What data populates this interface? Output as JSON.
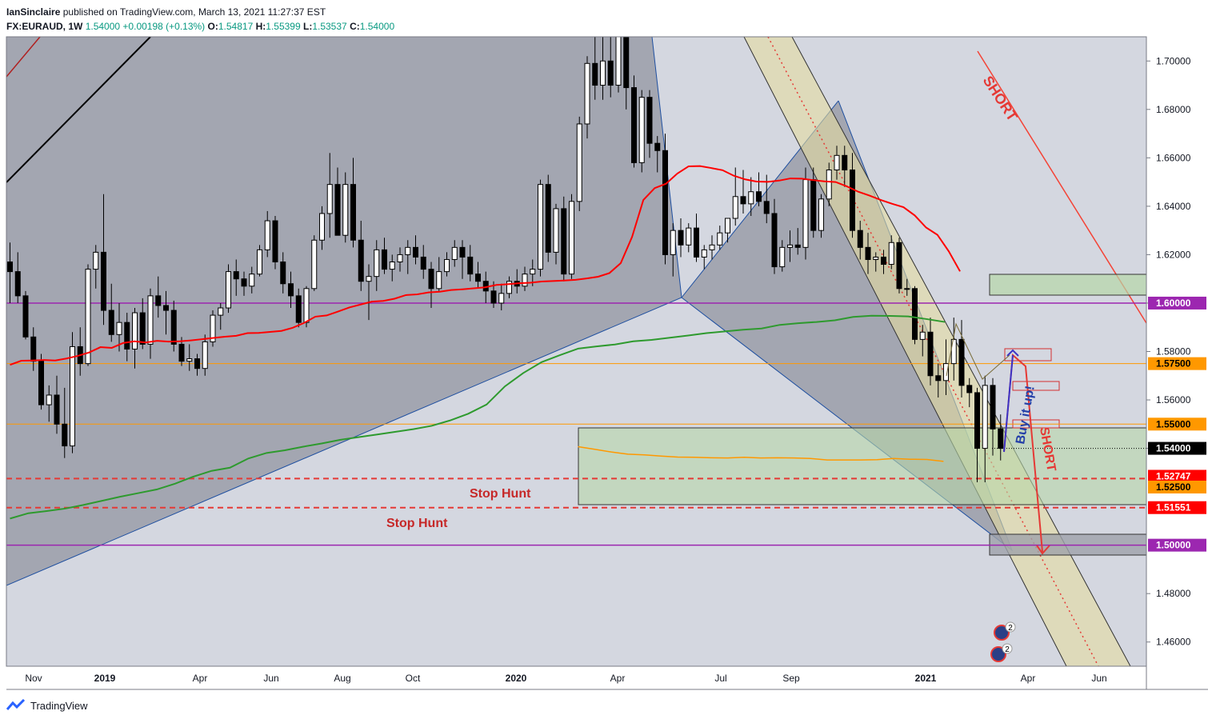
{
  "header": {
    "author": "IanSinclaire",
    "published": "published on TradingView.com, March 13, 2021 11:27:37 EST",
    "symbol": "FX:EURAUD, 1W",
    "last": "1.54000",
    "change": "+0.00198 (+0.13%)",
    "o_label": "O:",
    "o": "1.54817",
    "h_label": "H:",
    "h": "1.55399",
    "l_label": "L:",
    "l": "1.53537",
    "c_label": "C:",
    "c": "1.54000"
  },
  "footer": {
    "brand": "TradingView",
    "logo_icon": "tradingview-logo-icon"
  },
  "colors": {
    "background": "#d1d4dc",
    "plot_bg": "#d4d7e0",
    "bull": "#ffffff",
    "bear": "#000000",
    "ema_red": "#ff0000",
    "ema_green": "#2e9a2e",
    "ma_orange": "#ff9800",
    "purple": "#9c27b0",
    "channel": "#e4dca0",
    "zone_green": "#b7d7a8"
  },
  "chart_data": {
    "type": "candlestick",
    "symbol": "FX:EURAUD",
    "timeframe": "1W",
    "ylim": [
      1.45,
      1.71
    ],
    "y_ticks": [
      "1.70000",
      "1.68000",
      "1.66000",
      "1.64000",
      "1.62000",
      "1.60000",
      "1.58000",
      "1.56000",
      "1.54000",
      "1.48000",
      "1.46000"
    ],
    "x_ticks": [
      "Nov",
      "2019",
      "Apr",
      "Jun",
      "Aug",
      "Oct",
      "2020",
      "Apr",
      "Jul",
      "Sep",
      "2021",
      "Apr",
      "Jun"
    ],
    "price_labels": [
      {
        "value": "1.60000",
        "color": "#9c27b0"
      },
      {
        "value": "1.57500",
        "color": "#ff9800"
      },
      {
        "value": "1.55000",
        "color": "#ff9800"
      },
      {
        "value": "1.54000",
        "color": "#000000"
      },
      {
        "value": "1.52747",
        "color": "#ff0000"
      },
      {
        "value": "1.52500",
        "color": "#ff9800"
      },
      {
        "value": "1.51551",
        "color": "#ff0000"
      },
      {
        "value": "1.50000",
        "color": "#9c27b0"
      }
    ],
    "annotations": [
      "SHORT",
      "Stop Hunt",
      "Stop Hunt",
      "Buy it up!",
      "SHORT"
    ],
    "event_badges": [
      "2",
      "2"
    ],
    "candles": [
      {
        "o": 1.617,
        "h": 1.625,
        "l": 1.6,
        "c": 1.613
      },
      {
        "o": 1.613,
        "h": 1.621,
        "l": 1.6,
        "c": 1.603
      },
      {
        "o": 1.603,
        "h": 1.605,
        "l": 1.585,
        "c": 1.586
      },
      {
        "o": 1.586,
        "h": 1.59,
        "l": 1.572,
        "c": 1.576
      },
      {
        "o": 1.576,
        "h": 1.579,
        "l": 1.556,
        "c": 1.558
      },
      {
        "o": 1.558,
        "h": 1.566,
        "l": 1.551,
        "c": 1.562
      },
      {
        "o": 1.562,
        "h": 1.57,
        "l": 1.546,
        "c": 1.55
      },
      {
        "o": 1.55,
        "h": 1.565,
        "l": 1.536,
        "c": 1.541
      },
      {
        "o": 1.541,
        "h": 1.588,
        "l": 1.538,
        "c": 1.582
      },
      {
        "o": 1.582,
        "h": 1.59,
        "l": 1.57,
        "c": 1.575
      },
      {
        "o": 1.575,
        "h": 1.616,
        "l": 1.574,
        "c": 1.614
      },
      {
        "o": 1.614,
        "h": 1.624,
        "l": 1.606,
        "c": 1.621
      },
      {
        "o": 1.621,
        "h": 1.645,
        "l": 1.591,
        "c": 1.597
      },
      {
        "o": 1.597,
        "h": 1.608,
        "l": 1.584,
        "c": 1.587
      },
      {
        "o": 1.587,
        "h": 1.6,
        "l": 1.58,
        "c": 1.592
      },
      {
        "o": 1.592,
        "h": 1.596,
        "l": 1.576,
        "c": 1.581
      },
      {
        "o": 1.581,
        "h": 1.598,
        "l": 1.573,
        "c": 1.596
      },
      {
        "o": 1.596,
        "h": 1.602,
        "l": 1.581,
        "c": 1.583
      },
      {
        "o": 1.583,
        "h": 1.606,
        "l": 1.577,
        "c": 1.603
      },
      {
        "o": 1.603,
        "h": 1.611,
        "l": 1.594,
        "c": 1.599
      },
      {
        "o": 1.599,
        "h": 1.605,
        "l": 1.587,
        "c": 1.597
      },
      {
        "o": 1.597,
        "h": 1.601,
        "l": 1.58,
        "c": 1.583
      },
      {
        "o": 1.583,
        "h": 1.586,
        "l": 1.574,
        "c": 1.576
      },
      {
        "o": 1.576,
        "h": 1.583,
        "l": 1.572,
        "c": 1.577
      },
      {
        "o": 1.577,
        "h": 1.579,
        "l": 1.57,
        "c": 1.573
      },
      {
        "o": 1.573,
        "h": 1.587,
        "l": 1.57,
        "c": 1.584
      },
      {
        "o": 1.584,
        "h": 1.597,
        "l": 1.582,
        "c": 1.595
      },
      {
        "o": 1.595,
        "h": 1.6,
        "l": 1.589,
        "c": 1.598
      },
      {
        "o": 1.598,
        "h": 1.616,
        "l": 1.596,
        "c": 1.613
      },
      {
        "o": 1.613,
        "h": 1.618,
        "l": 1.603,
        "c": 1.61
      },
      {
        "o": 1.61,
        "h": 1.613,
        "l": 1.603,
        "c": 1.607
      },
      {
        "o": 1.607,
        "h": 1.615,
        "l": 1.604,
        "c": 1.612
      },
      {
        "o": 1.612,
        "h": 1.624,
        "l": 1.611,
        "c": 1.622
      },
      {
        "o": 1.622,
        "h": 1.638,
        "l": 1.619,
        "c": 1.634
      },
      {
        "o": 1.634,
        "h": 1.636,
        "l": 1.614,
        "c": 1.617
      },
      {
        "o": 1.617,
        "h": 1.621,
        "l": 1.604,
        "c": 1.608
      },
      {
        "o": 1.608,
        "h": 1.613,
        "l": 1.598,
        "c": 1.603
      },
      {
        "o": 1.603,
        "h": 1.606,
        "l": 1.59,
        "c": 1.592
      },
      {
        "o": 1.592,
        "h": 1.607,
        "l": 1.59,
        "c": 1.606
      },
      {
        "o": 1.606,
        "h": 1.628,
        "l": 1.605,
        "c": 1.626
      },
      {
        "o": 1.626,
        "h": 1.64,
        "l": 1.622,
        "c": 1.637
      },
      {
        "o": 1.637,
        "h": 1.662,
        "l": 1.627,
        "c": 1.649
      },
      {
        "o": 1.649,
        "h": 1.656,
        "l": 1.628,
        "c": 1.628
      },
      {
        "o": 1.628,
        "h": 1.654,
        "l": 1.625,
        "c": 1.649
      },
      {
        "o": 1.649,
        "h": 1.66,
        "l": 1.623,
        "c": 1.626
      },
      {
        "o": 1.626,
        "h": 1.634,
        "l": 1.605,
        "c": 1.609
      },
      {
        "o": 1.609,
        "h": 1.616,
        "l": 1.593,
        "c": 1.611
      },
      {
        "o": 1.611,
        "h": 1.626,
        "l": 1.605,
        "c": 1.622
      },
      {
        "o": 1.622,
        "h": 1.627,
        "l": 1.612,
        "c": 1.614
      },
      {
        "o": 1.614,
        "h": 1.62,
        "l": 1.609,
        "c": 1.617
      },
      {
        "o": 1.617,
        "h": 1.623,
        "l": 1.613,
        "c": 1.62
      },
      {
        "o": 1.62,
        "h": 1.626,
        "l": 1.612,
        "c": 1.623
      },
      {
        "o": 1.623,
        "h": 1.628,
        "l": 1.616,
        "c": 1.619
      },
      {
        "o": 1.619,
        "h": 1.624,
        "l": 1.61,
        "c": 1.614
      },
      {
        "o": 1.614,
        "h": 1.617,
        "l": 1.598,
        "c": 1.606
      },
      {
        "o": 1.606,
        "h": 1.619,
        "l": 1.605,
        "c": 1.613
      },
      {
        "o": 1.613,
        "h": 1.621,
        "l": 1.611,
        "c": 1.618
      },
      {
        "o": 1.618,
        "h": 1.626,
        "l": 1.615,
        "c": 1.623
      },
      {
        "o": 1.623,
        "h": 1.626,
        "l": 1.61,
        "c": 1.619
      },
      {
        "o": 1.619,
        "h": 1.624,
        "l": 1.609,
        "c": 1.612
      },
      {
        "o": 1.612,
        "h": 1.617,
        "l": 1.606,
        "c": 1.609
      },
      {
        "o": 1.609,
        "h": 1.613,
        "l": 1.6,
        "c": 1.605
      },
      {
        "o": 1.605,
        "h": 1.609,
        "l": 1.598,
        "c": 1.6
      },
      {
        "o": 1.6,
        "h": 1.608,
        "l": 1.597,
        "c": 1.604
      },
      {
        "o": 1.604,
        "h": 1.611,
        "l": 1.602,
        "c": 1.609
      },
      {
        "o": 1.609,
        "h": 1.614,
        "l": 1.604,
        "c": 1.607
      },
      {
        "o": 1.607,
        "h": 1.615,
        "l": 1.605,
        "c": 1.612
      },
      {
        "o": 1.612,
        "h": 1.618,
        "l": 1.607,
        "c": 1.614
      },
      {
        "o": 1.614,
        "h": 1.651,
        "l": 1.611,
        "c": 1.649
      },
      {
        "o": 1.649,
        "h": 1.653,
        "l": 1.617,
        "c": 1.621
      },
      {
        "o": 1.621,
        "h": 1.641,
        "l": 1.616,
        "c": 1.639
      },
      {
        "o": 1.639,
        "h": 1.644,
        "l": 1.609,
        "c": 1.612
      },
      {
        "o": 1.612,
        "h": 1.645,
        "l": 1.61,
        "c": 1.642
      },
      {
        "o": 1.642,
        "h": 1.677,
        "l": 1.638,
        "c": 1.674
      },
      {
        "o": 1.674,
        "h": 1.702,
        "l": 1.668,
        "c": 1.699
      },
      {
        "o": 1.699,
        "h": 1.712,
        "l": 1.684,
        "c": 1.69
      },
      {
        "o": 1.69,
        "h": 1.712,
        "l": 1.684,
        "c": 1.7
      },
      {
        "o": 1.7,
        "h": 1.712,
        "l": 1.685,
        "c": 1.69
      },
      {
        "o": 1.69,
        "h": 1.711,
        "l": 1.687,
        "c": 1.712
      },
      {
        "o": 1.712,
        "h": 1.712,
        "l": 1.68,
        "c": 1.689
      },
      {
        "o": 1.689,
        "h": 1.694,
        "l": 1.656,
        "c": 1.658
      },
      {
        "o": 1.658,
        "h": 1.688,
        "l": 1.654,
        "c": 1.685
      },
      {
        "o": 1.685,
        "h": 1.688,
        "l": 1.66,
        "c": 1.666
      },
      {
        "o": 1.666,
        "h": 1.669,
        "l": 1.654,
        "c": 1.663
      },
      {
        "o": 1.663,
        "h": 1.67,
        "l": 1.616,
        "c": 1.62
      },
      {
        "o": 1.62,
        "h": 1.633,
        "l": 1.611,
        "c": 1.63
      },
      {
        "o": 1.63,
        "h": 1.635,
        "l": 1.619,
        "c": 1.624
      },
      {
        "o": 1.624,
        "h": 1.633,
        "l": 1.621,
        "c": 1.631
      },
      {
        "o": 1.631,
        "h": 1.637,
        "l": 1.617,
        "c": 1.619
      },
      {
        "o": 1.619,
        "h": 1.624,
        "l": 1.614,
        "c": 1.622
      },
      {
        "o": 1.622,
        "h": 1.628,
        "l": 1.618,
        "c": 1.624
      },
      {
        "o": 1.624,
        "h": 1.632,
        "l": 1.622,
        "c": 1.629
      },
      {
        "o": 1.629,
        "h": 1.634,
        "l": 1.625,
        "c": 1.635
      },
      {
        "o": 1.635,
        "h": 1.656,
        "l": 1.632,
        "c": 1.644
      },
      {
        "o": 1.644,
        "h": 1.655,
        "l": 1.637,
        "c": 1.641
      },
      {
        "o": 1.641,
        "h": 1.652,
        "l": 1.636,
        "c": 1.646
      },
      {
        "o": 1.646,
        "h": 1.654,
        "l": 1.64,
        "c": 1.642
      },
      {
        "o": 1.642,
        "h": 1.653,
        "l": 1.633,
        "c": 1.637
      },
      {
        "o": 1.637,
        "h": 1.643,
        "l": 1.612,
        "c": 1.615
      },
      {
        "o": 1.615,
        "h": 1.626,
        "l": 1.613,
        "c": 1.623
      },
      {
        "o": 1.623,
        "h": 1.63,
        "l": 1.617,
        "c": 1.624
      },
      {
        "o": 1.624,
        "h": 1.631,
        "l": 1.62,
        "c": 1.623
      },
      {
        "o": 1.623,
        "h": 1.656,
        "l": 1.618,
        "c": 1.651
      },
      {
        "o": 1.651,
        "h": 1.656,
        "l": 1.627,
        "c": 1.63
      },
      {
        "o": 1.63,
        "h": 1.645,
        "l": 1.627,
        "c": 1.643
      },
      {
        "o": 1.643,
        "h": 1.658,
        "l": 1.64,
        "c": 1.655
      },
      {
        "o": 1.655,
        "h": 1.665,
        "l": 1.651,
        "c": 1.661
      },
      {
        "o": 1.661,
        "h": 1.665,
        "l": 1.648,
        "c": 1.655
      },
      {
        "o": 1.655,
        "h": 1.662,
        "l": 1.627,
        "c": 1.63
      },
      {
        "o": 1.63,
        "h": 1.634,
        "l": 1.618,
        "c": 1.623
      },
      {
        "o": 1.623,
        "h": 1.629,
        "l": 1.612,
        "c": 1.618
      },
      {
        "o": 1.618,
        "h": 1.621,
        "l": 1.613,
        "c": 1.619
      },
      {
        "o": 1.619,
        "h": 1.622,
        "l": 1.612,
        "c": 1.616
      },
      {
        "o": 1.616,
        "h": 1.628,
        "l": 1.614,
        "c": 1.625
      },
      {
        "o": 1.625,
        "h": 1.627,
        "l": 1.604,
        "c": 1.606
      },
      {
        "o": 1.606,
        "h": 1.61,
        "l": 1.603,
        "c": 1.606
      },
      {
        "o": 1.606,
        "h": 1.607,
        "l": 1.583,
        "c": 1.585
      },
      {
        "o": 1.585,
        "h": 1.591,
        "l": 1.578,
        "c": 1.588
      },
      {
        "o": 1.588,
        "h": 1.594,
        "l": 1.566,
        "c": 1.57
      },
      {
        "o": 1.57,
        "h": 1.575,
        "l": 1.561,
        "c": 1.568
      },
      {
        "o": 1.568,
        "h": 1.585,
        "l": 1.562,
        "c": 1.575
      },
      {
        "o": 1.575,
        "h": 1.594,
        "l": 1.568,
        "c": 1.585
      },
      {
        "o": 1.585,
        "h": 1.593,
        "l": 1.561,
        "c": 1.566
      },
      {
        "o": 1.566,
        "h": 1.569,
        "l": 1.557,
        "c": 1.563
      },
      {
        "o": 1.563,
        "h": 1.565,
        "l": 1.526,
        "c": 1.54
      },
      {
        "o": 1.54,
        "h": 1.57,
        "l": 1.526,
        "c": 1.566
      },
      {
        "o": 1.566,
        "h": 1.569,
        "l": 1.537,
        "c": 1.548
      },
      {
        "o": 1.548,
        "h": 1.554,
        "l": 1.535,
        "c": 1.54
      }
    ],
    "series": [
      {
        "name": "EMA 50",
        "color": "#ff0000",
        "values": [
          1.5745,
          1.5762,
          1.5763,
          1.5765,
          1.5763,
          1.5771,
          1.5782,
          1.5796,
          1.5818,
          1.5815,
          1.5835,
          1.5842,
          1.5837,
          1.5844,
          1.5841,
          1.5842,
          1.5846,
          1.5851,
          1.5856,
          1.5861,
          1.5865,
          1.5876,
          1.5877,
          1.5881,
          1.5885,
          1.5898,
          1.5918,
          1.5944,
          1.5949,
          1.5965,
          1.5982,
          1.5994,
          1.6006,
          1.6009,
          1.6018,
          1.6033,
          1.6036,
          1.6044,
          1.6047,
          1.6054,
          1.6057,
          1.6061,
          1.6065,
          1.6075,
          1.6078,
          1.6082,
          1.6084,
          1.6089,
          1.6091,
          1.6093,
          1.6096,
          1.6102,
          1.6109,
          1.6124,
          1.6165,
          1.6273,
          1.6426,
          1.6475,
          1.6493,
          1.6535,
          1.6565,
          1.6566,
          1.6558,
          1.6549,
          1.6526,
          1.6511,
          1.6502,
          1.6501,
          1.6506,
          1.6515,
          1.6514,
          1.6508,
          1.6503,
          1.65,
          1.6482,
          1.646,
          1.6444,
          1.6426,
          1.641,
          1.6396,
          1.6362,
          1.6312,
          1.6282,
          1.6214,
          1.6131
        ]
      },
      {
        "name": "EMA 200",
        "color": "#2e9a2e",
        "values": [
          1.511,
          1.5132,
          1.5141,
          1.5151,
          1.5166,
          1.5183,
          1.52,
          1.5215,
          1.523,
          1.5254,
          1.5283,
          1.5307,
          1.532,
          1.5358,
          1.5381,
          1.5392,
          1.5407,
          1.542,
          1.5435,
          1.5446,
          1.5457,
          1.5468,
          1.5479,
          1.5493,
          1.5515,
          1.5543,
          1.5581,
          1.5656,
          1.5711,
          1.5756,
          1.5785,
          1.5812,
          1.5821,
          1.5829,
          1.5842,
          1.5848,
          1.5857,
          1.5866,
          1.5876,
          1.5883,
          1.589,
          1.5895,
          1.591,
          1.5917,
          1.5922,
          1.5929,
          1.5943,
          1.5948,
          1.5947,
          1.5945,
          1.5934,
          1.5922
        ]
      },
      {
        "name": "SMA",
        "color": "#ff9800",
        "values": [
          1.5407,
          1.5396,
          1.5385,
          1.5376,
          1.5373,
          1.5368,
          1.5364,
          1.5363,
          1.5361,
          1.536,
          1.5363,
          1.536,
          1.5361,
          1.536,
          1.5358,
          1.5352,
          1.5352,
          1.5352,
          1.5353,
          1.5358,
          1.5355,
          1.5354,
          1.5346
        ]
      }
    ],
    "levels": [
      {
        "y": 1.6,
        "style": "purple"
      },
      {
        "y": 1.575,
        "style": "orange"
      },
      {
        "y": 1.55,
        "style": "orange"
      },
      {
        "y": 1.5275,
        "style": "red-dashed"
      },
      {
        "y": 1.5155,
        "style": "red-dashed"
      },
      {
        "y": 1.5,
        "style": "purple"
      }
    ]
  }
}
